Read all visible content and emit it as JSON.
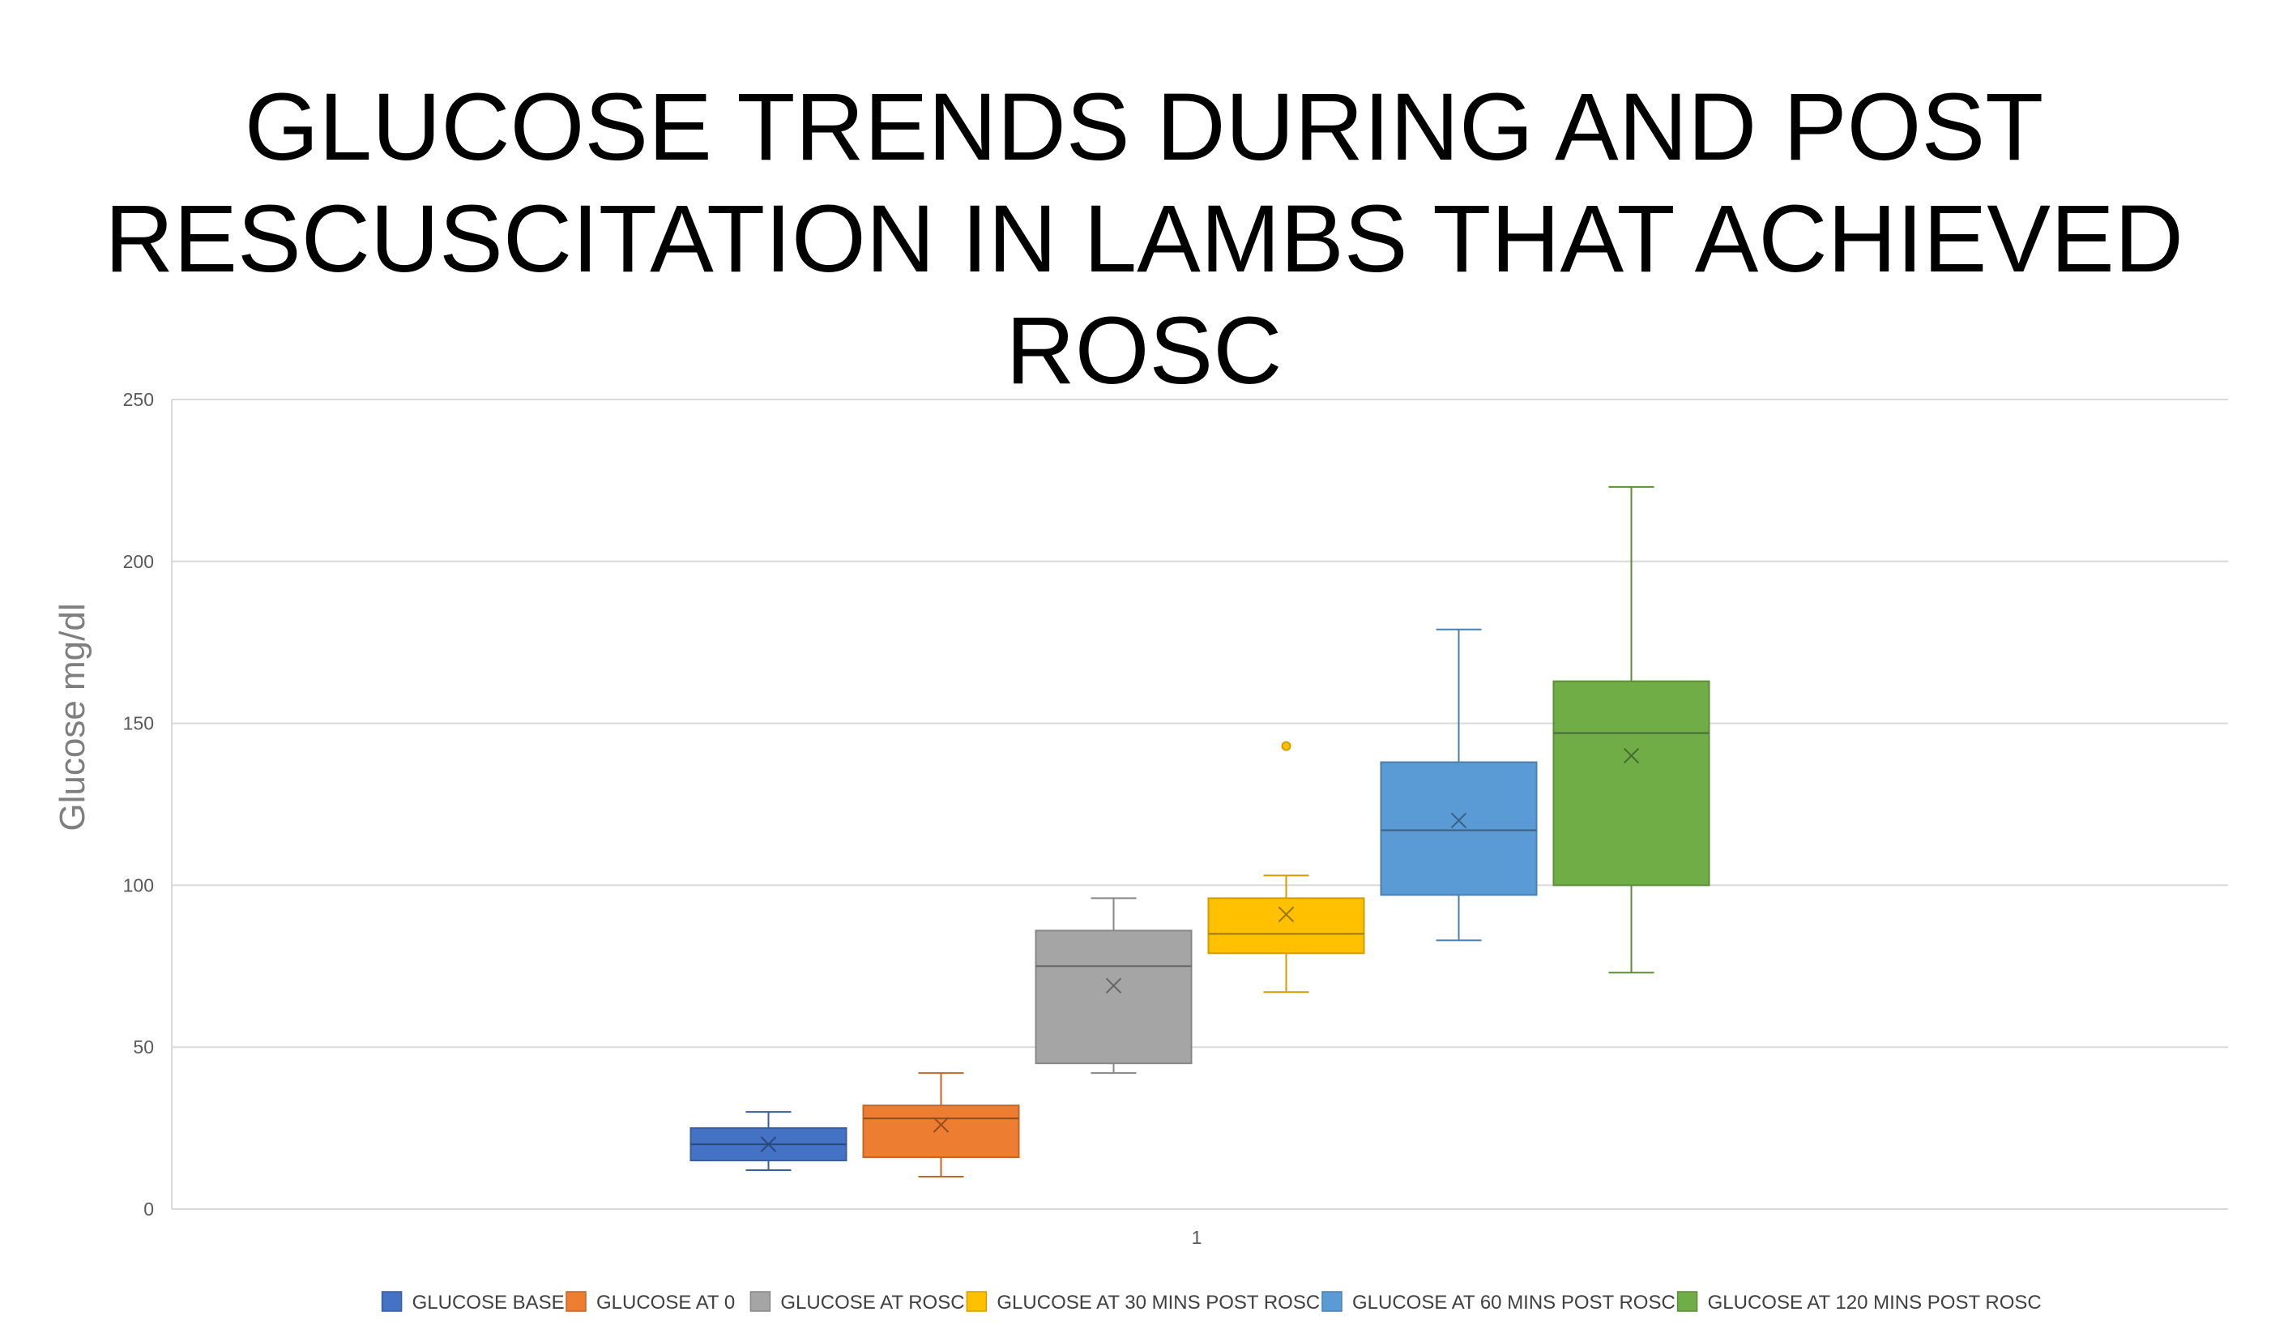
{
  "chart_data": {
    "type": "box",
    "title_lines": [
      "GLUCOSE TRENDS DURING AND POST",
      "RESCUSCITATION IN LAMBS THAT ACHIEVED ROSC"
    ],
    "ylabel": "Glucose mg/dl",
    "xlabel": "",
    "categories": [
      "1"
    ],
    "ylim": [
      0,
      250
    ],
    "yticks": [
      0,
      50,
      100,
      150,
      200,
      250
    ],
    "grid": true,
    "legend_position": "bottom",
    "series": [
      {
        "name": "GLUCOSE BASE",
        "color": "#4472c4",
        "min": 12,
        "q1": 15,
        "median": 20,
        "q3": 25,
        "max": 30,
        "mean": 20,
        "outliers": []
      },
      {
        "name": "GLUCOSE AT 0",
        "color": "#ed7d31",
        "min": 10,
        "q1": 16,
        "median": 28,
        "q3": 32,
        "max": 42,
        "mean": 26,
        "outliers": []
      },
      {
        "name": "GLUCOSE AT ROSC",
        "color": "#a5a5a5",
        "min": 42,
        "q1": 45,
        "median": 75,
        "q3": 86,
        "max": 96,
        "mean": 69,
        "outliers": []
      },
      {
        "name": "GLUCOSE AT 30 MINS POST ROSC",
        "color": "#ffc000",
        "min": 67,
        "q1": 79,
        "median": 85,
        "q3": 96,
        "max": 103,
        "mean": 91,
        "outliers": [
          143
        ]
      },
      {
        "name": "GLUCOSE AT 60 MINS POST ROSC",
        "color": "#5b9bd5",
        "min": 83,
        "q1": 97,
        "median": 117,
        "q3": 138,
        "max": 179,
        "mean": 120,
        "outliers": []
      },
      {
        "name": "GLUCOSE AT 120 MINS POST ROSC",
        "color": "#70ad47",
        "min": 73,
        "q1": 100,
        "median": 147,
        "q3": 163,
        "max": 223,
        "mean": 140,
        "outliers": []
      }
    ]
  }
}
